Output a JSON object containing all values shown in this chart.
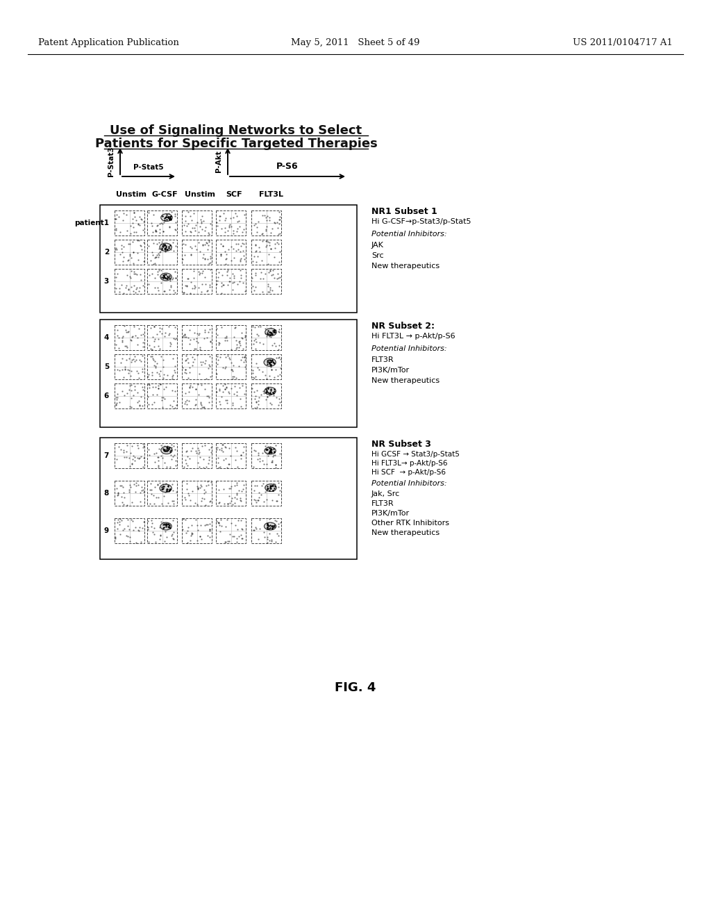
{
  "header_left": "Patent Application Publication",
  "header_mid": "May 5, 2011   Sheet 5 of 49",
  "header_right": "US 2011/0104717 A1",
  "title_line1": "Use of Signaling Networks to Select",
  "title_line2": "Patients for Specific Targeted Therapies",
  "axis_label1": "P-Stat3",
  "axis_label2": "P-Stat5",
  "axis_label3": "P-Akt",
  "axis_label4": "P-S6",
  "col_headers": [
    "Unstim",
    "G-CSF",
    "Unstim",
    "SCF",
    "FLT3L"
  ],
  "row_labels": [
    "patient1",
    "2",
    "3",
    "4",
    "5",
    "6",
    "7",
    "8",
    "9"
  ],
  "box1_title": "NR1 Subset 1",
  "box1_line1": "Hi G-CSF→p-Stat3/p-Stat5",
  "box1_italic": "Potential Inhibitors:",
  "box1_items": [
    "JAK",
    "Src",
    "New therapeutics"
  ],
  "box2_title": "NR Subset 2:",
  "box2_line1": "Hi FLT3L → p-Akt/p-S6",
  "box2_italic": "Potential Inhibitors:",
  "box2_items": [
    "FLT3R",
    "PI3K/mTor",
    "New therapeutics"
  ],
  "box3_title": "NR Subset 3",
  "box3_lines": [
    "Hi GCSF → Stat3/p-Stat5",
    "Hi FLT3L→ p-Akt/p-S6",
    "Hi SCF  → p-Akt/p-S6"
  ],
  "box3_italic": "Potential Inhibitors:",
  "box3_items": [
    "Jak, Src",
    "FLT3R",
    "PI3K/mTor",
    "Other RTK Inhibitors",
    "New therapeutics"
  ],
  "fig_label": "FIG. 4",
  "bg_color": "#ffffff",
  "text_color": "#111111"
}
